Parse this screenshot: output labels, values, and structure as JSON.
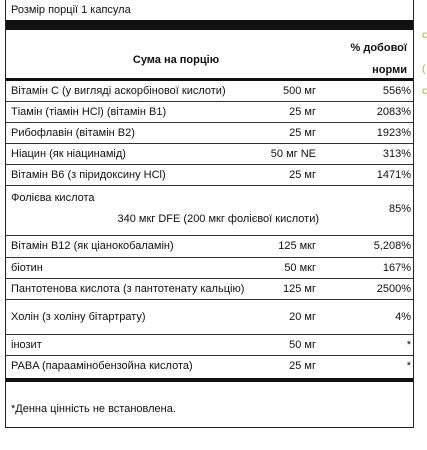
{
  "serving": "Розмір порції 1 капсула",
  "header": {
    "amount": "Сума на порцію",
    "dv_line1": "% добової",
    "dv_line2": "норми"
  },
  "rows": [
    {
      "name": "Вітамін C (у вигляді аскорбінової кислоти)",
      "amount": "500 мг",
      "dv": "556%"
    },
    {
      "name": "Тіамін (тіамін HCl) (вітамін B1)",
      "amount": "25 мг",
      "dv": "2083%"
    },
    {
      "name": "Рибофлавін (вітамін B2)",
      "amount": "25 мг",
      "dv": "1923%"
    },
    {
      "name": "Ніацин (як ніацинамід)",
      "amount": "50 мг NE",
      "dv": "313%"
    },
    {
      "name": "Вітамін B6 (з піридоксину HCl)",
      "amount": "25 мг",
      "dv": "1471%"
    },
    {
      "name": "Фолієва кислота",
      "sub": "340 мкг DFE (200 мкг фолієвої кислоти)",
      "dv": "85%"
    },
    {
      "name": "Вітамін B12 (як ціанокобаламін)",
      "amount": "125 мкг",
      "dv": "5,208%"
    },
    {
      "name": "біотин",
      "amount": "50 мкг",
      "dv": "167%"
    },
    {
      "name": "Пантотенова кислота (з пантотенату кальцію)",
      "amount": "125 мг",
      "dv": "2500%"
    },
    {
      "name": "Холін (з холіну бітартрату)",
      "amount": "20 мг",
      "dv": "4%"
    },
    {
      "name": "інозит",
      "amount": "50 мг",
      "dv": "*"
    },
    {
      "name": "PABA (параамінобензойна кислота)",
      "amount": "25 мг",
      "dv": "*"
    }
  ],
  "footnote": "*Денна цінність не встановлена.",
  "edge": [
    "с",
    "(",
    "с"
  ]
}
